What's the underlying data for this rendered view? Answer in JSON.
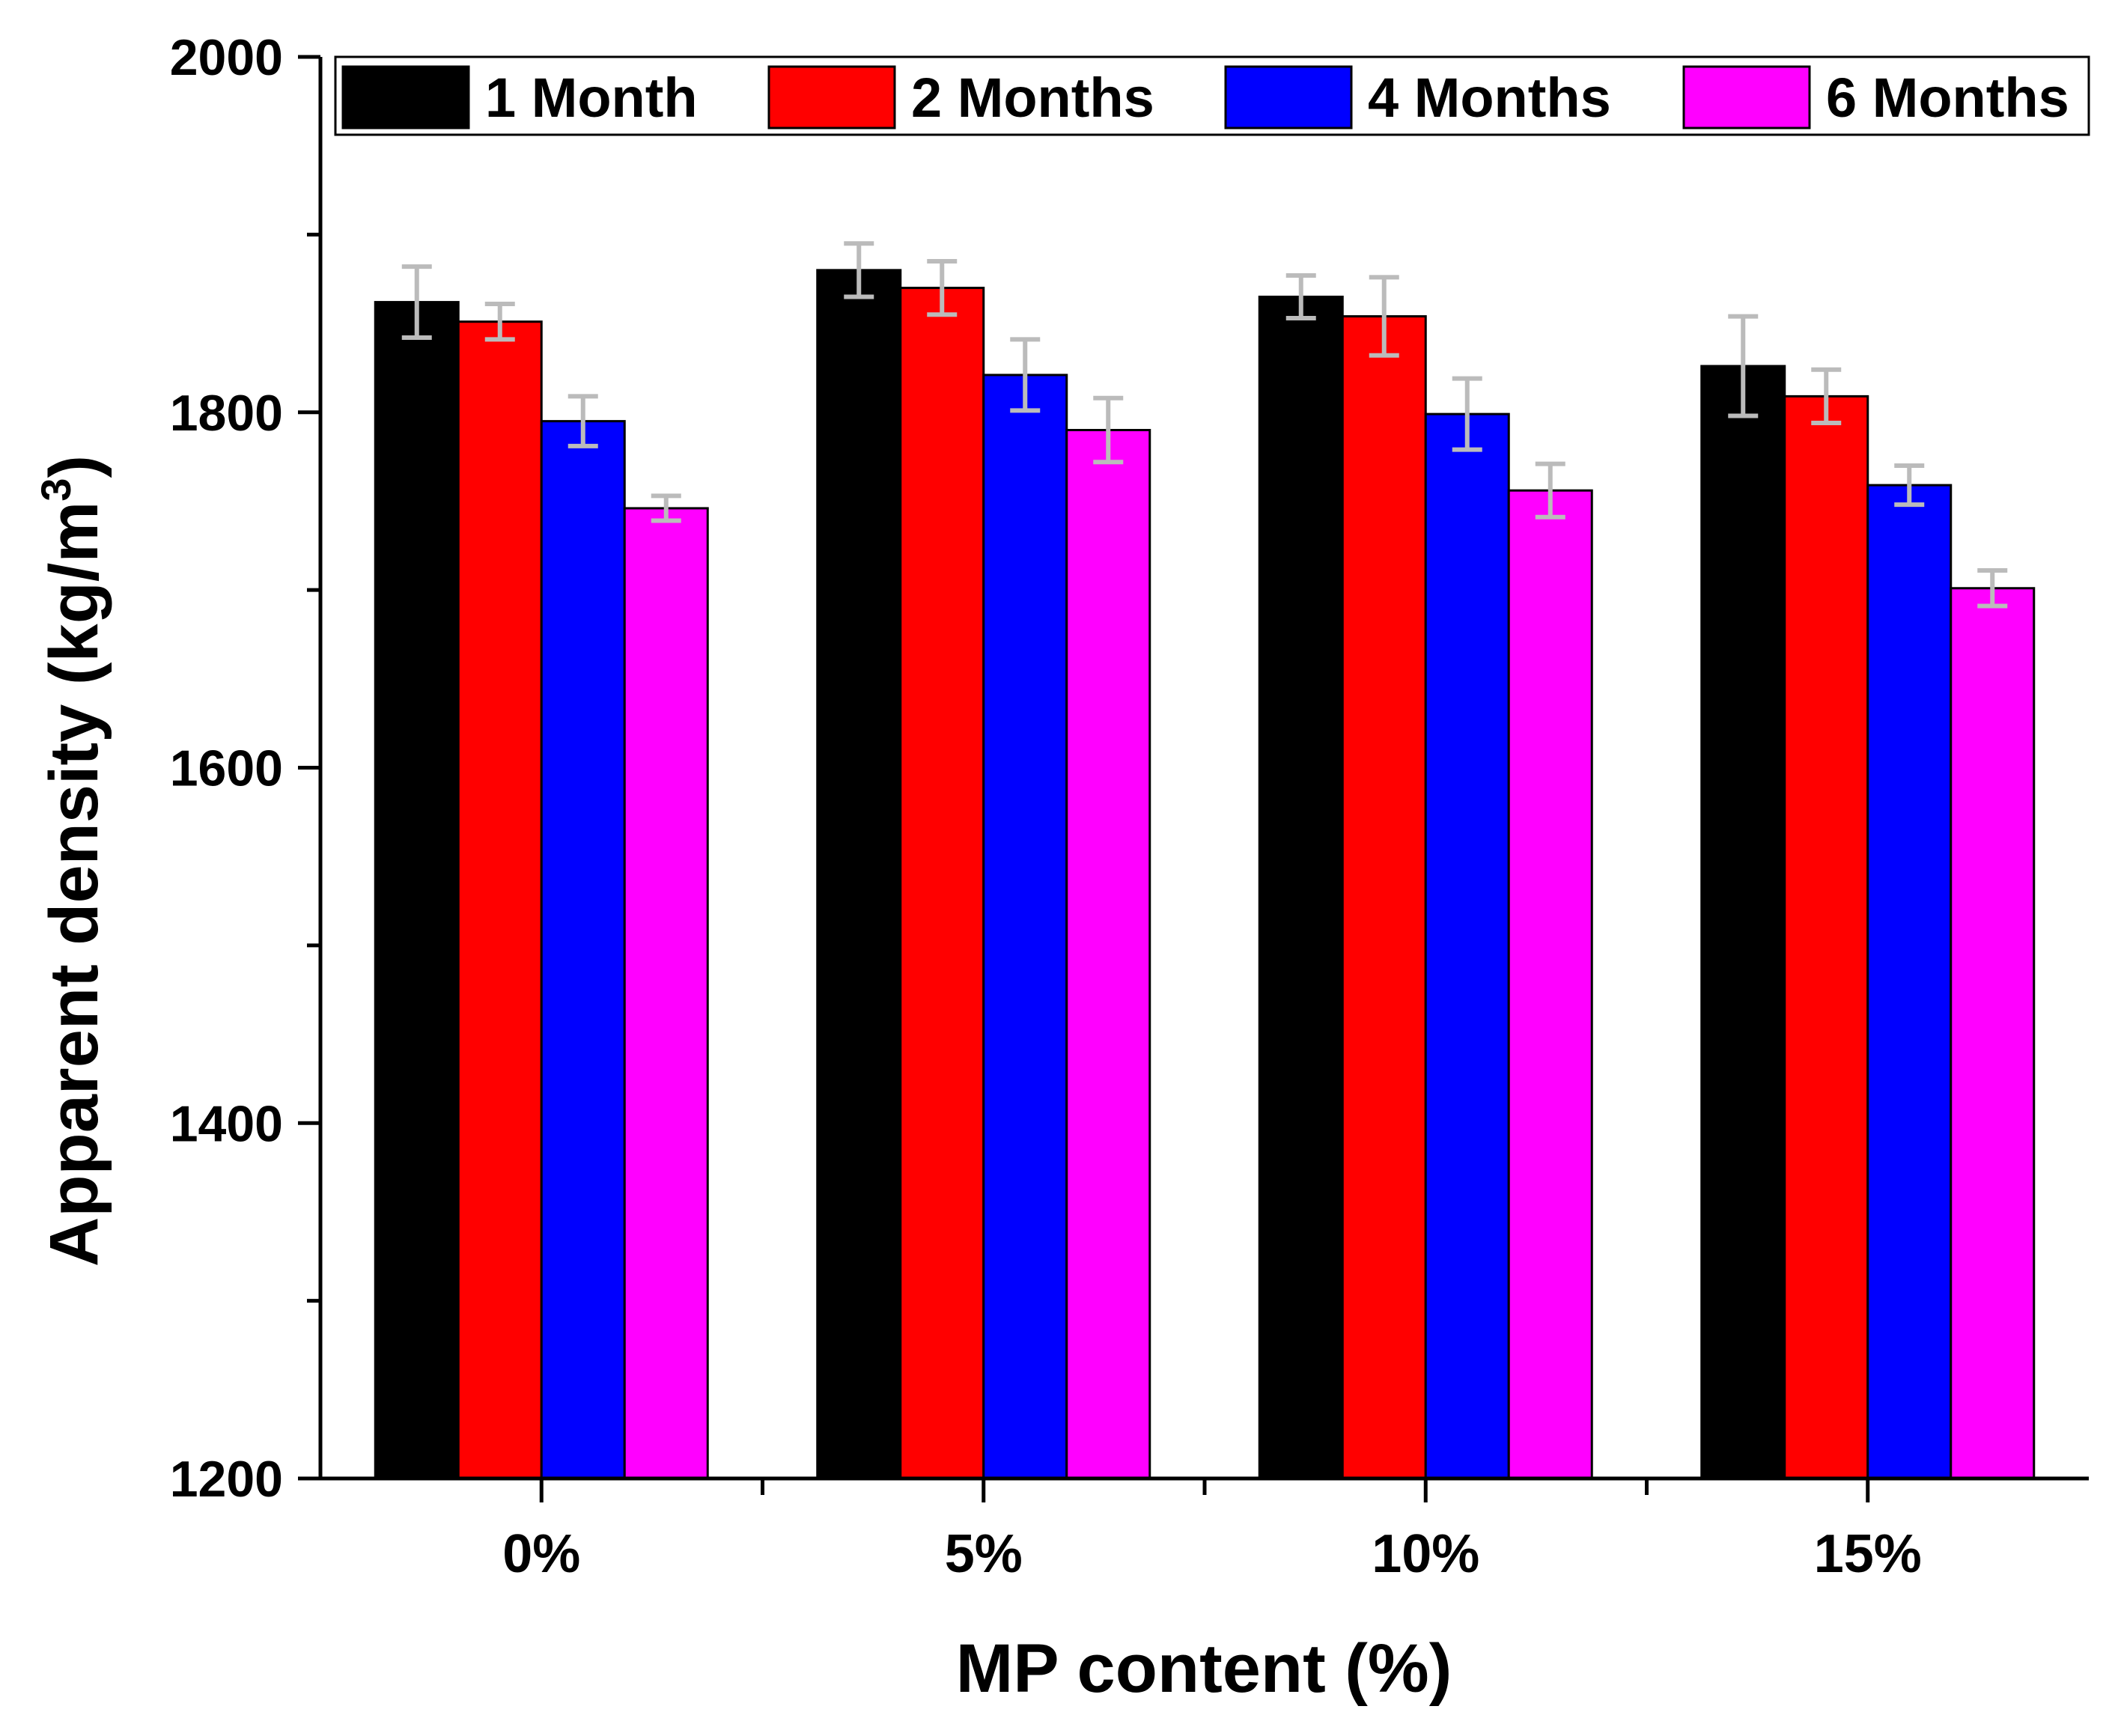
{
  "chart_data": {
    "type": "bar",
    "title": "",
    "xlabel": "MP content (%)",
    "ylabel": "Apparent density (kg/m",
    "ylabel_superscript": "3",
    "ylabel_suffix": ")",
    "categories": [
      "0%",
      "5%",
      "10%",
      "15%"
    ],
    "ylim": [
      1200,
      2000
    ],
    "yticks": [
      1200,
      1400,
      1600,
      1800,
      2000
    ],
    "grid": false,
    "legend_position": "top",
    "series": [
      {
        "name": "1 Month",
        "color": "#000000",
        "values": [
          1862,
          1880,
          1865,
          1826
        ],
        "errors": [
          20,
          15,
          12,
          28
        ]
      },
      {
        "name": "2 Months",
        "color": "#ff0000",
        "values": [
          1851,
          1870,
          1854,
          1809
        ],
        "errors": [
          10,
          15,
          22,
          15
        ]
      },
      {
        "name": "4 Months",
        "color": "#0000ff",
        "values": [
          1795,
          1821,
          1799,
          1759
        ],
        "errors": [
          14,
          20,
          20,
          11
        ]
      },
      {
        "name": "6 Months",
        "color": "#ff00ff",
        "values": [
          1746,
          1790,
          1756,
          1701
        ],
        "errors": [
          7,
          18,
          15,
          10
        ]
      }
    ],
    "error_bar_color": "#bbbbbb"
  }
}
